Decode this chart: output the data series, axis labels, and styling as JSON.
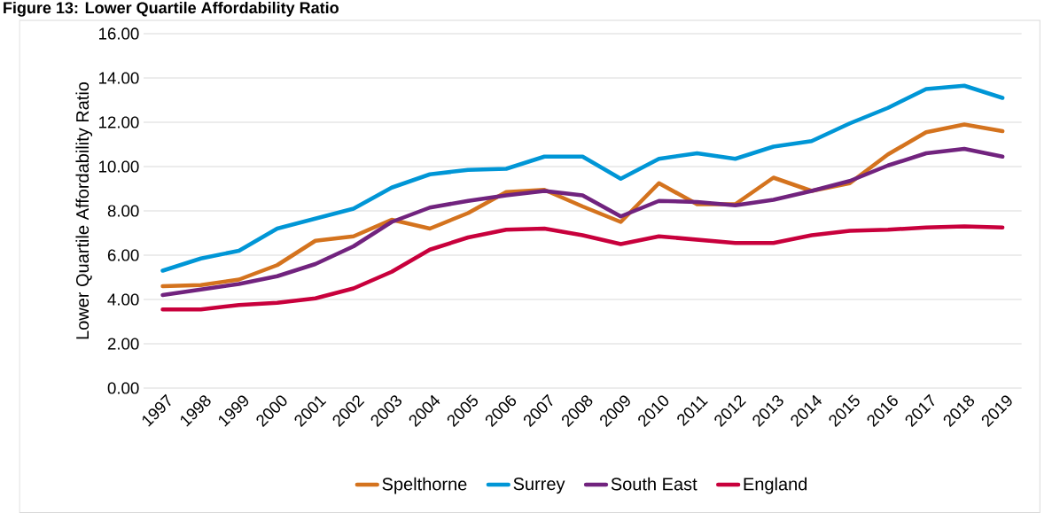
{
  "chart_data": {
    "type": "line",
    "title": "Figure 13: Lower Quartile Affordability Ratio",
    "ylabel": "Lower Quartile Affordability Ratio",
    "categories": [
      "1997",
      "1998",
      "1999",
      "2000",
      "2001",
      "2002",
      "2003",
      "2004",
      "2005",
      "2006",
      "2007",
      "2008",
      "2009",
      "2010",
      "2011",
      "2012",
      "2013",
      "2014",
      "2015",
      "2016",
      "2017",
      "2018",
      "2019"
    ],
    "series": [
      {
        "name": "Spelthorne",
        "color": "#d4731e",
        "values": [
          4.6,
          4.65,
          4.9,
          5.55,
          6.65,
          6.85,
          7.6,
          7.2,
          7.9,
          8.85,
          8.95,
          8.2,
          7.5,
          9.25,
          8.3,
          8.3,
          9.5,
          8.9,
          9.25,
          10.55,
          11.55,
          11.9,
          11.6
        ]
      },
      {
        "name": "Surrey",
        "color": "#0096d6",
        "values": [
          5.3,
          5.85,
          6.2,
          7.2,
          7.65,
          8.1,
          9.05,
          9.65,
          9.85,
          9.9,
          10.45,
          10.45,
          9.45,
          10.35,
          10.6,
          10.35,
          10.9,
          11.15,
          11.95,
          12.65,
          13.5,
          13.65,
          13.1
        ]
      },
      {
        "name": "South East",
        "color": "#71237e",
        "values": [
          4.2,
          4.45,
          4.7,
          5.05,
          5.6,
          6.4,
          7.5,
          8.15,
          8.45,
          8.7,
          8.9,
          8.7,
          7.75,
          8.45,
          8.4,
          8.25,
          8.5,
          8.9,
          9.35,
          10.05,
          10.6,
          10.8,
          10.45
        ]
      },
      {
        "name": "England",
        "color": "#c8003c",
        "values": [
          3.55,
          3.55,
          3.75,
          3.85,
          4.05,
          4.5,
          5.25,
          6.25,
          6.8,
          7.15,
          7.2,
          6.9,
          6.5,
          6.85,
          6.7,
          6.55,
          6.55,
          6.9,
          7.1,
          7.15,
          7.25,
          7.3,
          7.25
        ]
      }
    ],
    "ylim": [
      0,
      16
    ],
    "yticks": [
      {
        "value": 0,
        "label": "0.00"
      },
      {
        "value": 2,
        "label": "2.00"
      },
      {
        "value": 4,
        "label": "4.00"
      },
      {
        "value": 6,
        "label": "6.00"
      },
      {
        "value": 8,
        "label": "8.00"
      },
      {
        "value": 10,
        "label": "10.00"
      },
      {
        "value": 12,
        "label": "12.00"
      },
      {
        "value": 14,
        "label": "14.00"
      },
      {
        "value": 16,
        "label": "16.00"
      }
    ],
    "grid": "y",
    "legend": "bottom",
    "marker": "none",
    "line_style": "solid"
  }
}
